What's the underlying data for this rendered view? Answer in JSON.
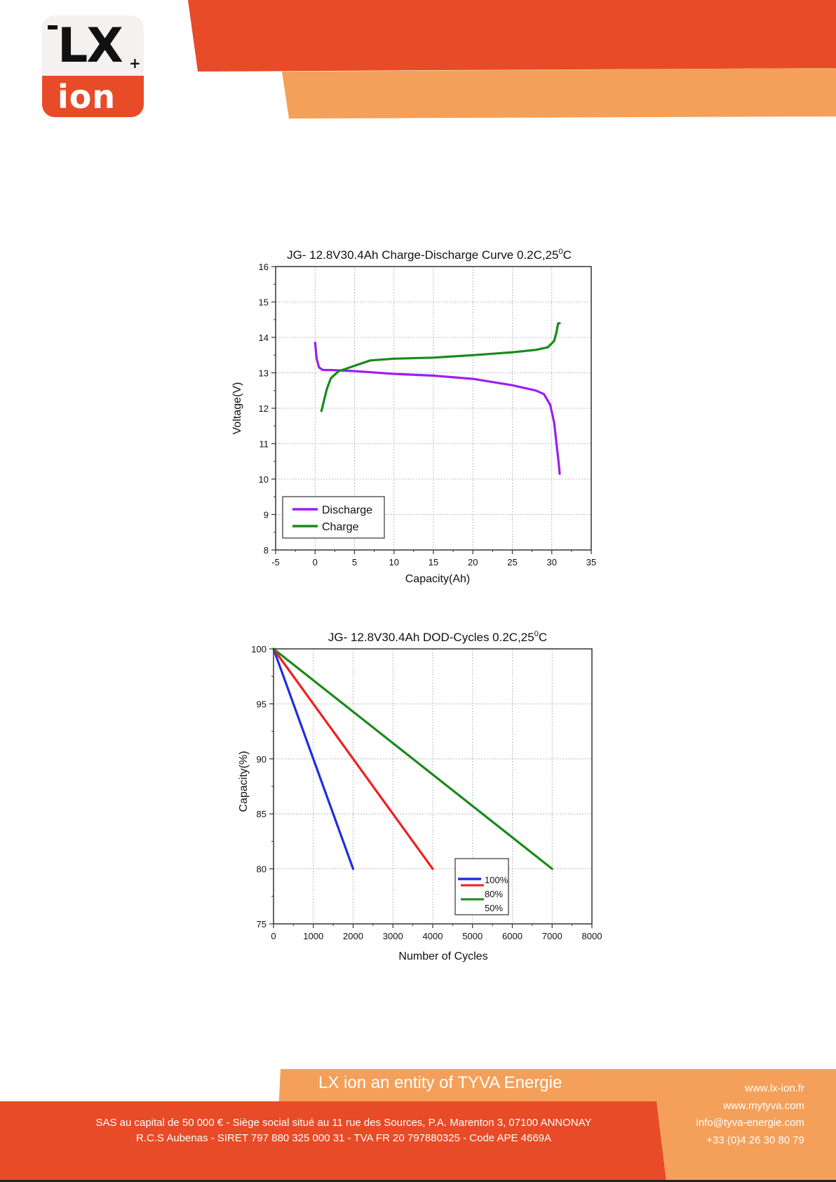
{
  "header": {
    "logo_text_top": "LX",
    "logo_plus": "+",
    "logo_text_bottom": "ion"
  },
  "colors": {
    "brand_red": "#e84b27",
    "brand_orange": "#f4a05a",
    "discharge": "#9b1ff0",
    "charge": "#1a8a1a",
    "dod_100": "#1f2de0",
    "dod_80": "#f01f1f",
    "dod_50": "#1a8a1a"
  },
  "chart_data": [
    {
      "type": "line",
      "title": "JG- 12.8V30.4Ah Charge-Discharge Curve 0.2C,25",
      "title_superscript": "0",
      "title_suffix": "C",
      "xlabel": "Capacity(Ah)",
      "ylabel": "Voltage(V)",
      "xlim": [
        -5,
        35
      ],
      "ylim": [
        8,
        16
      ],
      "xticks": [
        "-5",
        "0",
        "5",
        "10",
        "15",
        "20",
        "25",
        "30",
        "35"
      ],
      "yticks": [
        "8",
        "9",
        "10",
        "11",
        "12",
        "13",
        "14",
        "15",
        "16"
      ],
      "grid": true,
      "legend_position": "bottom-left",
      "series": [
        {
          "name": "Discharge",
          "x": [
            0.0,
            0.2,
            0.5,
            1.0,
            2.0,
            5.0,
            10.0,
            15.0,
            20.0,
            25.0,
            28.0,
            29.0,
            29.8,
            30.3,
            30.6,
            30.9,
            31.0
          ],
          "y": [
            13.85,
            13.4,
            13.15,
            13.08,
            13.08,
            13.05,
            12.97,
            12.92,
            12.83,
            12.65,
            12.5,
            12.4,
            12.1,
            11.6,
            11.0,
            10.4,
            10.15
          ]
        },
        {
          "name": "Charge",
          "x": [
            0.8,
            1.0,
            1.5,
            2.0,
            3.0,
            4.0,
            5.0,
            7.0,
            10.0,
            15.0,
            20.0,
            25.0,
            28.0,
            29.5,
            30.3,
            30.6,
            30.8,
            31.0
          ],
          "y": [
            11.92,
            12.1,
            12.55,
            12.85,
            13.05,
            13.12,
            13.2,
            13.35,
            13.4,
            13.43,
            13.5,
            13.58,
            13.65,
            13.72,
            13.9,
            14.15,
            14.4,
            14.4
          ]
        }
      ]
    },
    {
      "type": "line",
      "title": "JG- 12.8V30.4Ah DOD-Cycles 0.2C,25",
      "title_superscript": "0",
      "title_suffix": "C",
      "xlabel": "Number of Cycles",
      "ylabel": "Capacity(%)",
      "xlim": [
        0,
        8000
      ],
      "ylim": [
        75,
        100
      ],
      "xticks": [
        "0",
        "1000",
        "2000",
        "3000",
        "4000",
        "5000",
        "6000",
        "7000",
        "8000"
      ],
      "yticks": [
        "75",
        "80",
        "85",
        "90",
        "95",
        "100"
      ],
      "grid": true,
      "legend_position": "bottom-right",
      "series": [
        {
          "name": "100%",
          "x": [
            0,
            2000
          ],
          "y": [
            100,
            80
          ]
        },
        {
          "name": "80%",
          "x": [
            0,
            4000
          ],
          "y": [
            100,
            80
          ]
        },
        {
          "name": "50%",
          "x": [
            0,
            7000
          ],
          "y": [
            100,
            80
          ]
        }
      ]
    }
  ],
  "footer": {
    "tagline": "LX ion an entity of TYVA Energie",
    "legal_line_1": "SAS au capital de 50 000 € - Siège social situé au 11 rue des Sources, P.A. Marenton 3, 07100 ANNONAY",
    "legal_line_2": "R.C.S Aubenas - SIRET 797 880 325 000 31 - TVA FR 20 797880325 - Code APE 4669A",
    "website_1": "www.lx-ion.fr",
    "website_2": "www.mytyva.com",
    "email": "info@tyva-energie.com",
    "phone": "+33 (0)4 26 30 80 79"
  }
}
